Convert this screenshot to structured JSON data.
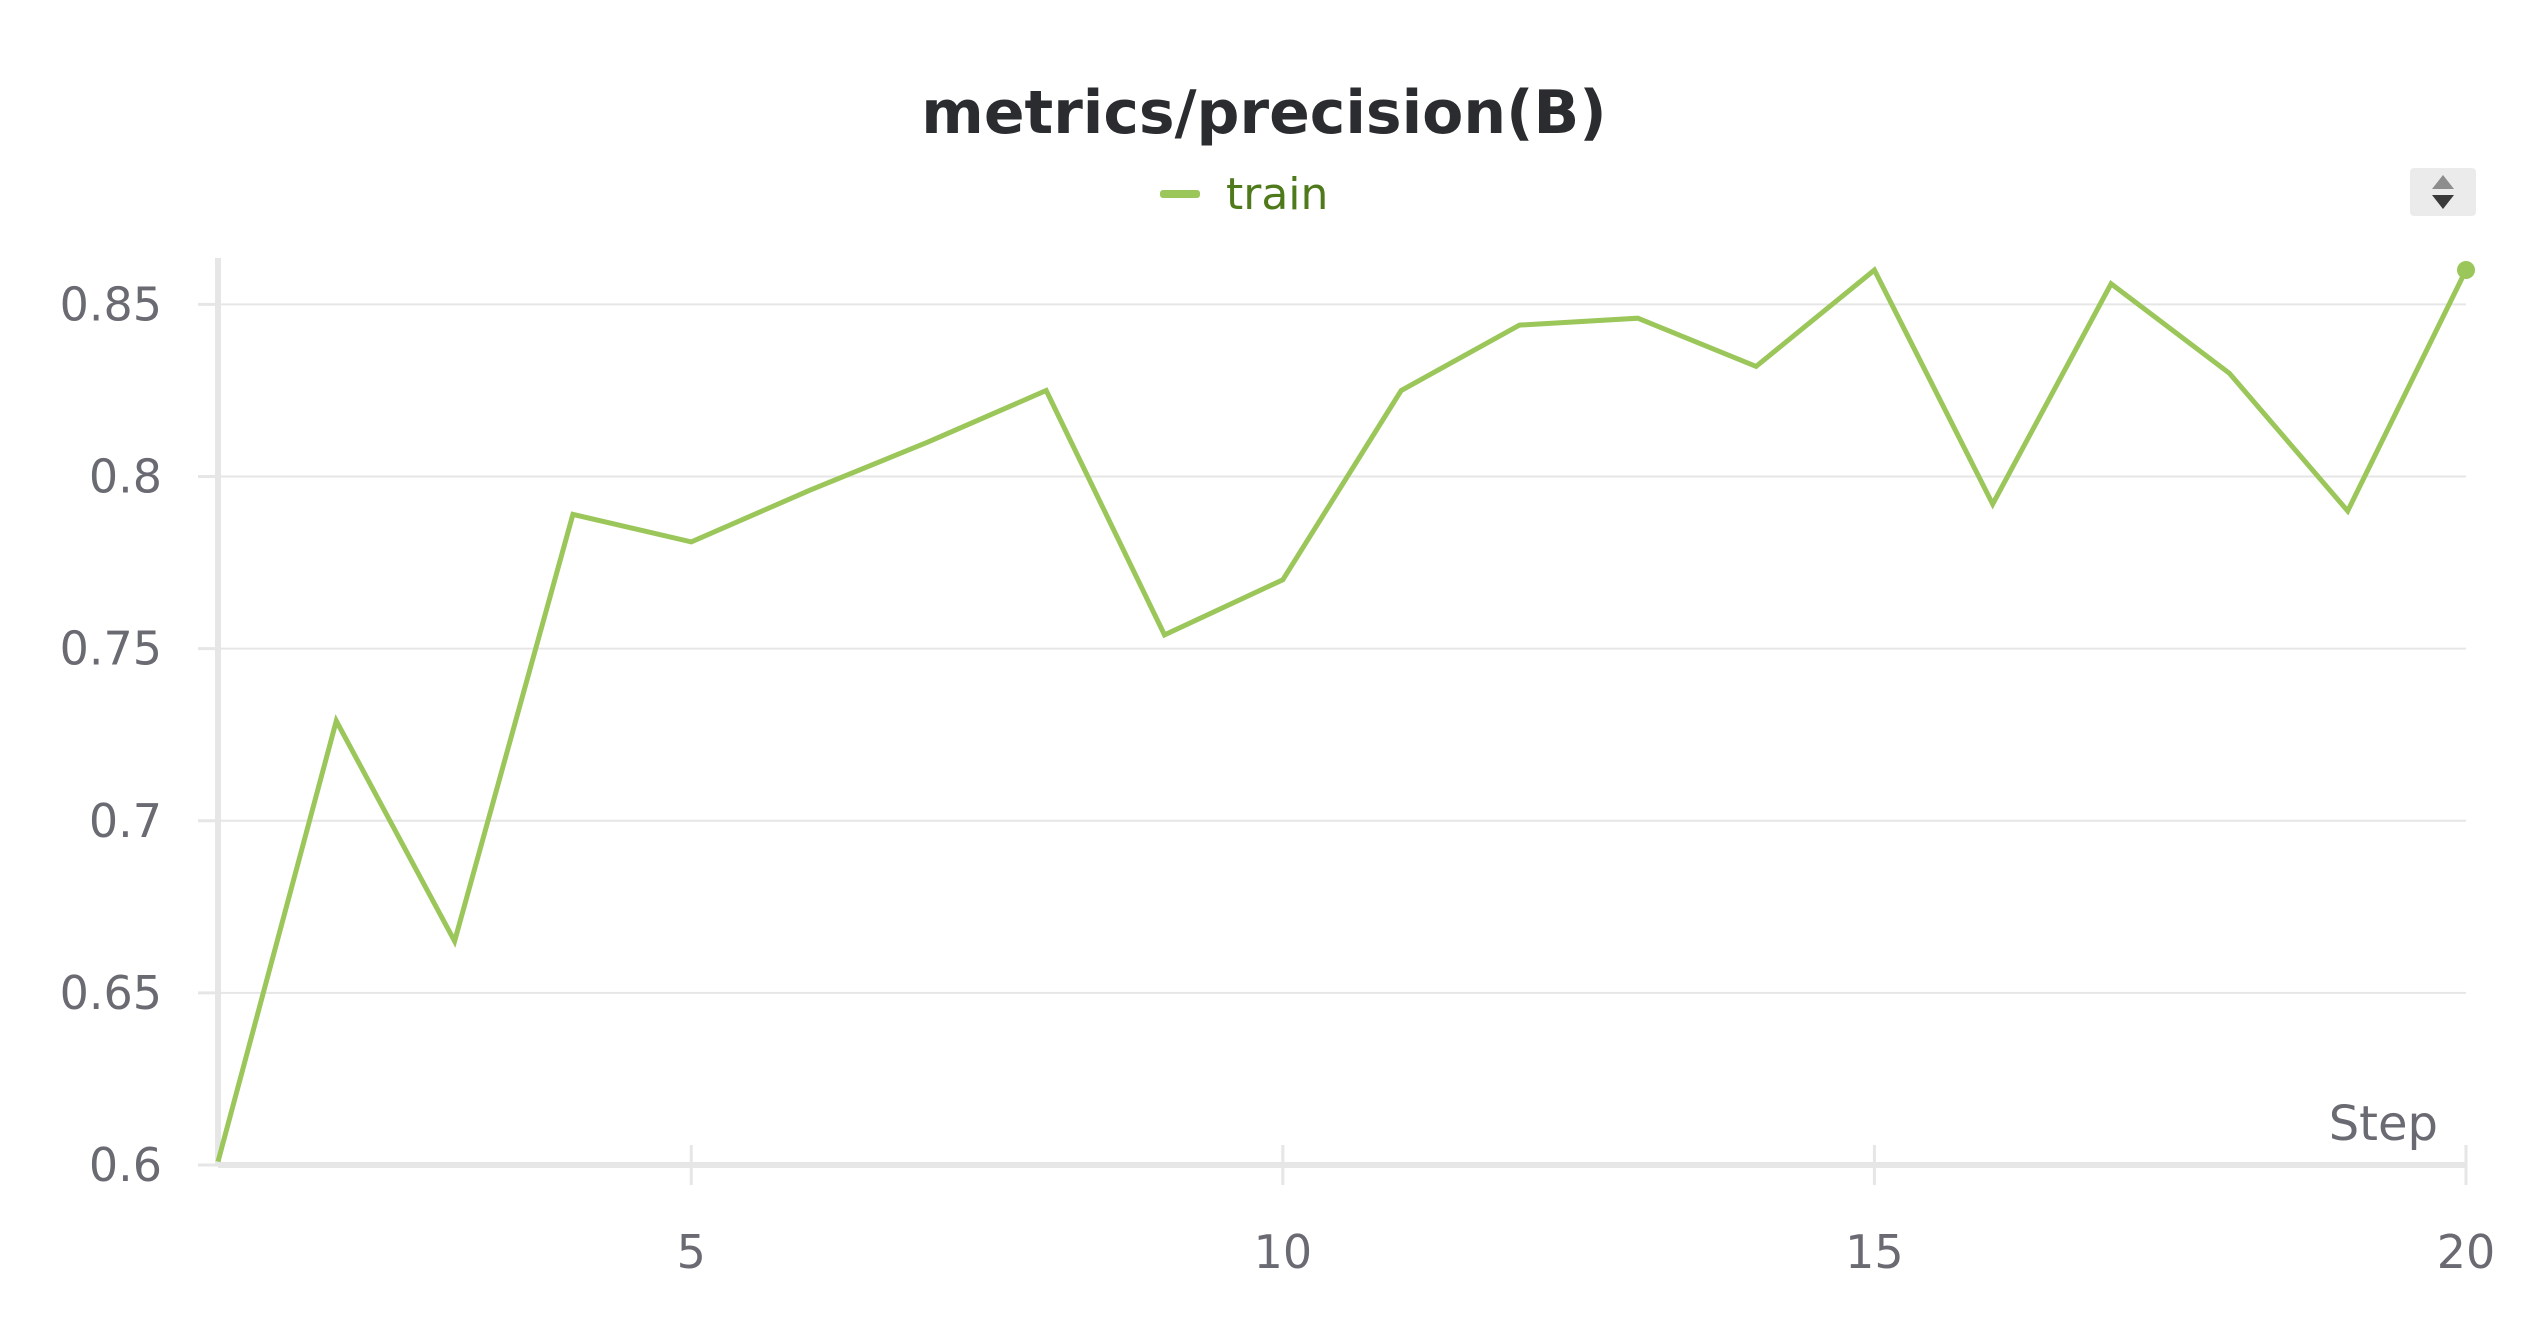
{
  "chart_data": {
    "type": "line",
    "title": "metrics/precision(B)",
    "xlabel": "Step",
    "ylabel": "",
    "xlim": [
      1,
      20
    ],
    "ylim": [
      0.6,
      0.86
    ],
    "x_ticks": [
      5,
      10,
      15,
      20
    ],
    "x_tick_labels": [
      "5",
      "10",
      "15",
      "20"
    ],
    "y_ticks": [
      0.6,
      0.65,
      0.7,
      0.75,
      0.8,
      0.85
    ],
    "y_tick_labels": [
      "0.6",
      "0.65",
      "0.7",
      "0.75",
      "0.8",
      "0.85"
    ],
    "grid": "horizontal",
    "legend_position": "top-center",
    "series": [
      {
        "name": "train",
        "color": "#9bc65a",
        "x": [
          1,
          2,
          3,
          4,
          5,
          6,
          7,
          8,
          9,
          10,
          11,
          12,
          13,
          14,
          15,
          16,
          17,
          18,
          19,
          20
        ],
        "values": [
          0.601,
          0.729,
          0.665,
          0.789,
          0.781,
          0.796,
          0.81,
          0.825,
          0.754,
          0.77,
          0.825,
          0.844,
          0.846,
          0.832,
          0.86,
          0.792,
          0.856,
          0.83,
          0.79,
          0.86
        ]
      }
    ]
  },
  "legend": {
    "scroll_icon": "updown-arrows-icon"
  }
}
